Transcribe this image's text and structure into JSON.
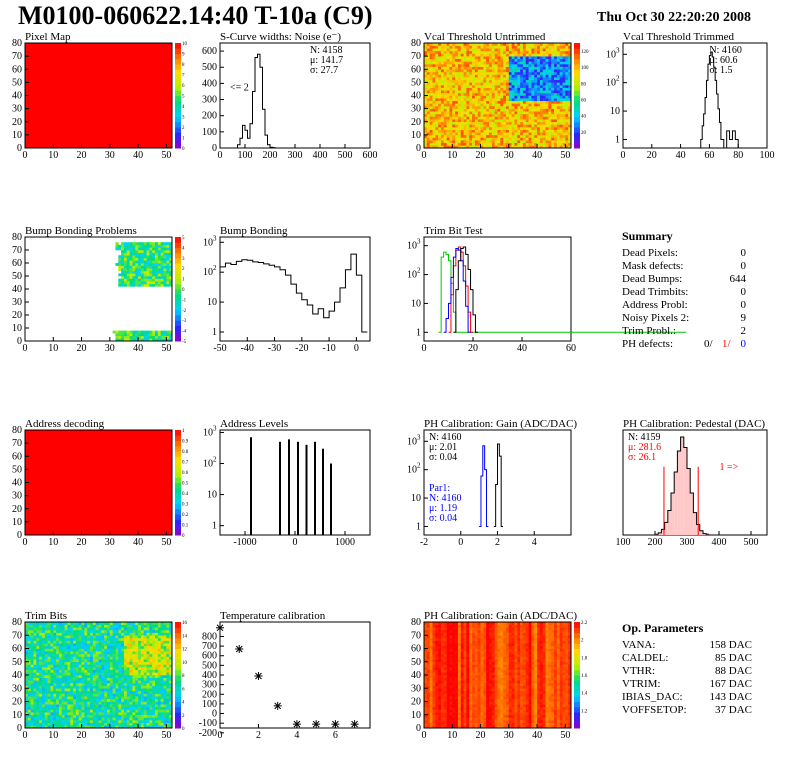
{
  "header": {
    "title": "M0100-060622.14:40 T-10a (C9)",
    "date": "Thu Oct 30 22:20:20 2008"
  },
  "chart_data": [
    {
      "id": "pixel-map",
      "type": "heatmap",
      "title": "Pixel Map",
      "xlim": [
        0,
        52
      ],
      "ylim": [
        0,
        80
      ],
      "xticks": [
        0,
        10,
        20,
        30,
        40,
        50
      ],
      "yticks": [
        0,
        10,
        20,
        30,
        40,
        50,
        60,
        70,
        80
      ],
      "fill": "uniform",
      "fill_color": "#ff0000",
      "z_scale": {
        "min": 0,
        "max": 10,
        "ticks": [
          0,
          1,
          2,
          3,
          4,
          5,
          6,
          7,
          8,
          9,
          10
        ]
      }
    },
    {
      "id": "scurve-noise",
      "type": "line",
      "title": "S-Curve widths: Noise (e⁻)",
      "xlim": [
        0,
        600
      ],
      "ylim": [
        0,
        650
      ],
      "xticks": [
        0,
        100,
        200,
        300,
        400,
        500,
        600
      ],
      "yticks": [
        0,
        100,
        200,
        300,
        400,
        500,
        600
      ],
      "stats": [
        "N: 4158",
        "μ:  141.7",
        "σ:   27.7"
      ],
      "annotation": "<= 2",
      "x": [
        60,
        70,
        80,
        90,
        100,
        110,
        120,
        130,
        140,
        150,
        160,
        170,
        180,
        190,
        200,
        210,
        220,
        230
      ],
      "values": [
        0,
        20,
        60,
        140,
        110,
        60,
        150,
        350,
        560,
        580,
        500,
        240,
        80,
        20,
        5,
        2,
        0,
        0
      ]
    },
    {
      "id": "vcal-untrimmed",
      "type": "heatmap",
      "title": "Vcal Threshold Untrimmed",
      "xlim": [
        0,
        52
      ],
      "ylim": [
        0,
        80
      ],
      "xticks": [
        0,
        10,
        20,
        30,
        40,
        50
      ],
      "yticks": [
        0,
        10,
        20,
        30,
        40,
        50,
        60,
        70,
        80
      ],
      "fill": "noise",
      "regions": [
        {
          "x": [
            30,
            52
          ],
          "y": [
            35,
            70
          ],
          "value": 0.25
        }
      ],
      "base_value": 0.75,
      "z_scale": {
        "min": 0,
        "max": 130,
        "ticks": [
          20,
          40,
          60,
          80,
          100,
          120
        ]
      }
    },
    {
      "id": "vcal-trimmed",
      "type": "line",
      "title": "Vcal Threshold Trimmed",
      "log_y": true,
      "xlim": [
        0,
        100
      ],
      "ylim": [
        0.5,
        2500
      ],
      "xticks": [
        0,
        20,
        40,
        60,
        80,
        100
      ],
      "yticks": [
        1,
        10,
        100,
        1000
      ],
      "stats": [
        "N: 4160",
        "μ:  60.6",
        "σ:   1.5"
      ],
      "x": [
        52,
        54,
        55,
        56,
        57,
        58,
        59,
        60,
        61,
        62,
        63,
        64,
        65,
        66,
        67,
        68,
        70,
        72,
        74,
        76,
        78,
        80
      ],
      "values": [
        0,
        1,
        3,
        8,
        30,
        120,
        450,
        900,
        1200,
        800,
        350,
        120,
        40,
        12,
        4,
        1,
        0,
        2,
        1,
        2,
        1,
        0
      ]
    },
    {
      "id": "bump-problems",
      "type": "heatmap",
      "title": "Bump Bonding Problems",
      "xlim": [
        0,
        52
      ],
      "ylim": [
        0,
        80
      ],
      "xticks": [
        0,
        10,
        20,
        30,
        40,
        50
      ],
      "yticks": [
        0,
        10,
        20,
        30,
        40,
        50,
        60,
        70,
        80
      ],
      "fill": "regions",
      "regions": [
        {
          "x": [
            29,
            52
          ],
          "y": [
            0,
            7
          ],
          "value": 0.45
        },
        {
          "x": [
            31,
            52
          ],
          "y": [
            42,
            76
          ],
          "value": 0.45
        }
      ],
      "z_scale": {
        "min": -5,
        "max": 5,
        "ticks": [
          -5,
          -4,
          -3,
          -2,
          -1,
          0,
          1,
          2,
          3,
          4,
          5
        ]
      }
    },
    {
      "id": "bump-bonding",
      "type": "line",
      "title": "Bump Bonding",
      "log_y": true,
      "xlim": [
        -50,
        5
      ],
      "ylim": [
        0.5,
        1500
      ],
      "xticks": [
        -50,
        -40,
        -30,
        -20,
        -10,
        0
      ],
      "yticks": [
        1,
        10,
        100,
        1000
      ],
      "x": [
        -50,
        -48,
        -46,
        -44,
        -42,
        -40,
        -38,
        -36,
        -34,
        -32,
        -30,
        -28,
        -26,
        -24,
        -22,
        -20,
        -18,
        -16,
        -14,
        -12,
        -10,
        -8,
        -6,
        -4,
        -2,
        0,
        2
      ],
      "values": [
        150,
        200,
        180,
        230,
        260,
        250,
        220,
        210,
        190,
        170,
        150,
        120,
        80,
        40,
        20,
        12,
        8,
        4,
        6,
        3,
        5,
        10,
        30,
        120,
        400,
        80,
        1
      ]
    },
    {
      "id": "trim-bit-test",
      "type": "line",
      "title": "Trim Bit Test",
      "log_y": true,
      "xlim": [
        0,
        60
      ],
      "ylim": [
        0.5,
        2000
      ],
      "xticks": [
        0,
        20,
        40,
        60
      ],
      "yticks": [
        1,
        10,
        100,
        1000
      ],
      "series": [
        {
          "color": "#00cc00",
          "x": [
            6,
            7,
            8,
            9,
            10,
            11,
            12,
            13,
            60
          ],
          "values": [
            1,
            400,
            600,
            500,
            300,
            50,
            5,
            1,
            1
          ]
        },
        {
          "color": "#ff0000",
          "x": [
            10,
            11,
            12,
            13,
            14,
            15,
            16,
            17,
            18,
            19
          ],
          "values": [
            1,
            20,
            200,
            700,
            900,
            600,
            200,
            40,
            5,
            1
          ]
        },
        {
          "color": "#0000ff",
          "x": [
            8,
            9,
            10,
            11,
            12,
            13,
            14,
            15,
            16,
            17,
            18
          ],
          "values": [
            1,
            3,
            10,
            80,
            400,
            800,
            700,
            300,
            60,
            8,
            1
          ]
        },
        {
          "color": "#000000",
          "x": [
            12,
            13,
            14,
            15,
            16,
            17,
            18,
            19,
            20,
            21
          ],
          "values": [
            1,
            30,
            300,
            800,
            900,
            500,
            150,
            30,
            4,
            1
          ]
        }
      ]
    },
    {
      "id": "address-decoding",
      "type": "heatmap",
      "title": "Address decoding",
      "xlim": [
        0,
        52
      ],
      "ylim": [
        0,
        80
      ],
      "xticks": [
        0,
        10,
        20,
        30,
        40,
        50
      ],
      "yticks": [
        0,
        10,
        20,
        30,
        40,
        50,
        60,
        70,
        80
      ],
      "fill": "uniform",
      "fill_color": "#ff0000",
      "z_scale": {
        "min": 0,
        "max": 1,
        "ticks": [
          0,
          0.1,
          0.2,
          0.3,
          0.4,
          0.5,
          0.6,
          0.7,
          0.8,
          0.9,
          1
        ]
      }
    },
    {
      "id": "address-levels",
      "type": "bar",
      "title": "Address Levels",
      "log_y": true,
      "xlim": [
        -1500,
        1500
      ],
      "ylim": [
        0.5,
        1200
      ],
      "xticks": [
        -1000,
        0,
        1000
      ],
      "yticks": [
        1,
        10,
        100,
        1000
      ],
      "x": [
        -880,
        -300,
        -120,
        60,
        230,
        400,
        560,
        720
      ],
      "values": [
        700,
        500,
        600,
        500,
        400,
        500,
        300,
        100
      ]
    },
    {
      "id": "ph-gain",
      "type": "line",
      "title": "PH Calibration: Gain (ADC/DAC)",
      "log_y": true,
      "xlim": [
        -2,
        6
      ],
      "ylim": [
        0.5,
        2500
      ],
      "xticks": [
        -2,
        0,
        2,
        4
      ],
      "yticks": [
        1,
        10,
        100,
        1000
      ],
      "stats": [
        "N: 4160",
        "μ:  2.01",
        "σ:  0.04"
      ],
      "stats2_title": "Par1:",
      "stats2": [
        "N: 4160",
        "μ:  1.19",
        "σ:  0.04"
      ],
      "series": [
        {
          "color": "#000000",
          "x": [
            1.8,
            1.9,
            2.0,
            2.1,
            2.2
          ],
          "values": [
            1,
            30,
            800,
            300,
            1
          ]
        },
        {
          "color": "#0000ff",
          "x": [
            1.0,
            1.1,
            1.2,
            1.3,
            1.4
          ],
          "values": [
            1,
            60,
            700,
            100,
            1
          ]
        }
      ]
    },
    {
      "id": "ph-pedestal",
      "type": "line",
      "title": "PH Calibration: Pedestal (DAC)",
      "xlim": [
        100,
        550
      ],
      "ylim": [
        0,
        150
      ],
      "xticks": [
        100,
        200,
        300,
        400,
        500
      ],
      "yticks": [],
      "stats": [
        "N: 4159",
        "μ:  281.6",
        "σ:  26.1"
      ],
      "annotation": "1 =>",
      "cut_lines": [
        228,
        335
      ],
      "x": [
        200,
        210,
        220,
        230,
        240,
        250,
        260,
        270,
        280,
        290,
        300,
        310,
        320,
        330,
        340,
        350,
        360
      ],
      "values": [
        1,
        3,
        8,
        18,
        35,
        60,
        90,
        120,
        140,
        125,
        95,
        60,
        32,
        15,
        6,
        2,
        1
      ]
    },
    {
      "id": "trim-bits",
      "type": "heatmap",
      "title": "Trim Bits",
      "xlim": [
        0,
        52
      ],
      "ylim": [
        0,
        80
      ],
      "xticks": [
        0,
        10,
        20,
        30,
        40,
        50
      ],
      "yticks": [
        0,
        10,
        20,
        30,
        40,
        50,
        60,
        70,
        80
      ],
      "fill": "noise",
      "base_value": 0.42,
      "regions": [
        {
          "x": [
            35,
            52
          ],
          "y": [
            40,
            70
          ],
          "value": 0.62
        }
      ],
      "z_scale": {
        "min": 0,
        "max": 16,
        "ticks": [
          0,
          2,
          4,
          6,
          8,
          10,
          12,
          14,
          16
        ]
      }
    },
    {
      "id": "temperature-calibration",
      "type": "scatter",
      "title": "Temperature calibration",
      "xlim": [
        0,
        7.8
      ],
      "ylim": [
        -150,
        950
      ],
      "xticks": [
        0,
        2,
        4,
        6
      ],
      "yticks": [
        -200,
        -100,
        0,
        100,
        200,
        300,
        400,
        500,
        600,
        700,
        800
      ],
      "x": [
        0,
        1,
        2,
        3,
        4,
        5,
        6,
        7
      ],
      "values": [
        890,
        670,
        390,
        80,
        -110,
        -110,
        -110,
        -110
      ]
    },
    {
      "id": "ph-gain-map",
      "type": "heatmap",
      "title": "PH Calibration: Gain (ADC/DAC)",
      "xlim": [
        0,
        52
      ],
      "ylim": [
        0,
        80
      ],
      "xticks": [
        0,
        10,
        20,
        30,
        40,
        50
      ],
      "yticks": [
        0,
        10,
        20,
        30,
        40,
        50,
        60,
        70,
        80
      ],
      "fill": "columns",
      "base_value": 0.93,
      "z_scale": {
        "min": 1,
        "max": 2.2,
        "ticks": [
          1.2,
          1.4,
          1.6,
          1.8,
          2,
          2.2
        ]
      }
    }
  ],
  "summary": {
    "title": "Summary",
    "items": [
      {
        "label": "Dead Pixels:",
        "value": "0"
      },
      {
        "label": "Mask defects:",
        "value": "0"
      },
      {
        "label": "Dead Bumps:",
        "value": "644"
      },
      {
        "label": "Dead Trimbits:",
        "value": "0"
      },
      {
        "label": "Address Probl:",
        "value": "0"
      },
      {
        "label": "Noisy Pixels 2:",
        "value": "9"
      },
      {
        "label": "Trim Probl.:",
        "value": "2"
      }
    ],
    "ph_defects": {
      "label": "PH defects:",
      "v1": "0/",
      "v2": "1/",
      "v3": "0"
    }
  },
  "op_params": {
    "title": "Op. Parameters",
    "items": [
      {
        "label": "VANA:",
        "value": "158 DAC"
      },
      {
        "label": "CALDEL:",
        "value": "85 DAC"
      },
      {
        "label": "VTHR:",
        "value": "88 DAC"
      },
      {
        "label": "VTRIM:",
        "value": "167 DAC"
      },
      {
        "label": "IBIAS_DAC:",
        "value": "143 DAC"
      },
      {
        "label": "VOFFSETOP:",
        "value": "37 DAC"
      }
    ]
  },
  "colors": {
    "red": "#ff0000",
    "blue": "#0000ff",
    "green": "#00cc00",
    "black": "#000000"
  }
}
